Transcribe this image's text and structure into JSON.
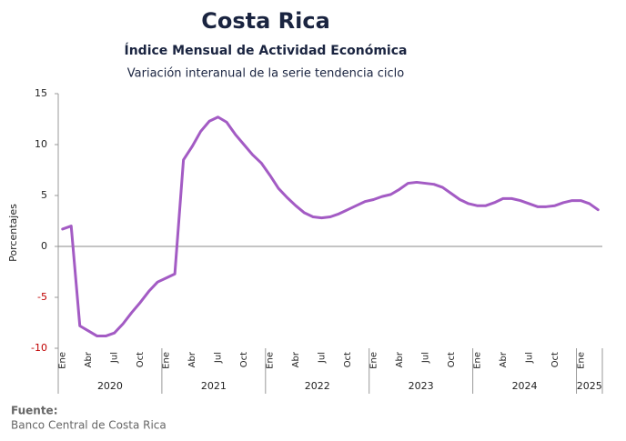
{
  "chart_data": {
    "type": "line",
    "title": "Costa Rica",
    "subtitle": "Índice Mensual de Actividad Económica",
    "subtitle2": "Variación interanual de la serie tendencia ciclo",
    "y_label": "Porcentajes",
    "source_label": "Fuente:",
    "source": "Banco Central de Costa Rica",
    "categories": [
      "Ene",
      null,
      null,
      "Abr",
      null,
      null,
      "Jul",
      null,
      null,
      "Oct",
      null,
      null,
      "Ene",
      null,
      null,
      "Abr",
      null,
      null,
      "Jul",
      null,
      null,
      "Oct",
      null,
      null,
      "Ene",
      null,
      null,
      "Abr",
      null,
      null,
      "Jul",
      null,
      null,
      "Oct",
      null,
      null,
      "Ene",
      null,
      null,
      "Abr",
      null,
      null,
      "Jul",
      null,
      null,
      "Oct",
      null,
      null,
      "Ene",
      null,
      null,
      "Abr",
      null,
      null,
      "Jul",
      null,
      null,
      "Oct",
      null,
      null,
      "Ene",
      null,
      null
    ],
    "year_labels": [
      "2020",
      "2021",
      "2022",
      "2023",
      "2024",
      "2025"
    ],
    "series": [
      {
        "name": "Variación interanual",
        "color": "#a35bc4",
        "values": [
          1.7,
          2.0,
          -7.8,
          -8.3,
          -8.8,
          -8.8,
          -8.5,
          -7.6,
          -6.5,
          -5.5,
          -4.4,
          -3.5,
          -3.1,
          -2.7,
          8.5,
          9.8,
          11.3,
          12.3,
          12.7,
          12.2,
          11.0,
          10.0,
          9.0,
          8.2,
          7.0,
          5.7,
          4.8,
          4.0,
          3.3,
          2.9,
          2.8,
          2.9,
          3.2,
          3.6,
          4.0,
          4.4,
          4.6,
          4.9,
          5.1,
          5.6,
          6.2,
          6.3,
          6.2,
          6.1,
          5.8,
          5.2,
          4.6,
          4.2,
          4.0,
          4.0,
          4.3,
          4.7,
          4.7,
          4.5,
          4.2,
          3.9,
          3.9,
          4.0,
          4.3,
          4.5,
          4.5,
          4.2,
          3.6
        ]
      }
    ],
    "ylim": [
      -10,
      15
    ],
    "yticks": [
      -10,
      -5,
      0,
      5,
      10,
      15
    ],
    "negative_tick_color": "#c00000",
    "zero_line": true
  }
}
